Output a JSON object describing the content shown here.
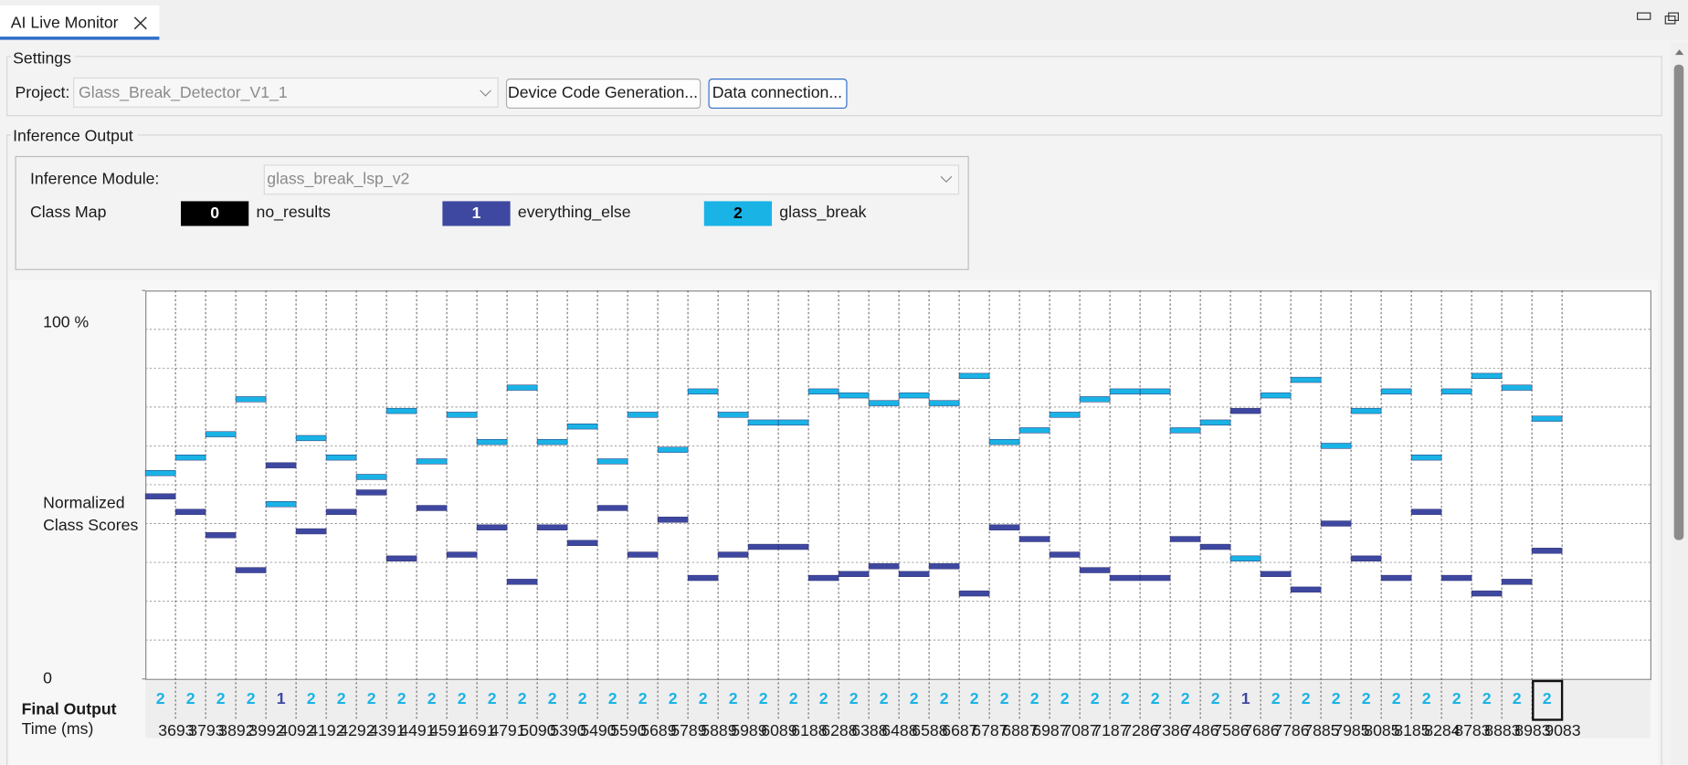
{
  "tab": {
    "title": "AI Live Monitor"
  },
  "settings": {
    "title": "Settings",
    "project_label": "Project:",
    "project": "Glass_Break_Detector_V1_1",
    "buttons": [
      "Device Code Generation...",
      "Data connection..."
    ]
  },
  "inference": {
    "title": "Inference Output",
    "module_label": "Inference Module:",
    "module": "glass_break_lsp_v2",
    "class_map_label": "Class Map"
  },
  "chart_data": {
    "type": "level",
    "classes": [
      {
        "id": 0,
        "name": "no_results",
        "color": "#000000"
      },
      {
        "id": 1,
        "name": "everything_else",
        "color": "#3f48a0"
      },
      {
        "id": 2,
        "name": "glass_break",
        "color": "#1ab3e6"
      }
    ],
    "ylabel": "Normalized Class Scores",
    "ylim": [
      0,
      100
    ],
    "yticks": [
      {
        "value": 0,
        "label": "0"
      },
      {
        "value": 100,
        "label": "100 %"
      }
    ],
    "ygrid": [
      10,
      20,
      30,
      40,
      50,
      60,
      70,
      80,
      90
    ],
    "categories": [
      "3693",
      "3793",
      "3892",
      "3992",
      "4092",
      "4192",
      "4292",
      "4391",
      "4491",
      "4591",
      "4691",
      "4791",
      "5090",
      "5390",
      "5490",
      "5590",
      "5689",
      "5789",
      "5889",
      "5989",
      "6089",
      "6188",
      "6288",
      "6388",
      "6488",
      "6588",
      "6687",
      "6787",
      "6887",
      "6987",
      "7087",
      "7187",
      "7286",
      "7386",
      "7486",
      "7586",
      "7686",
      "7786",
      "7885",
      "7985",
      "8085",
      "8185",
      "8284",
      "8783",
      "8883",
      "8983",
      "9083"
    ],
    "series": [
      {
        "class": 1,
        "values": [
          47,
          43,
          37,
          28,
          55,
          38,
          43,
          48,
          31,
          44,
          32,
          39,
          25,
          39,
          35,
          44,
          32,
          41,
          26,
          32,
          34,
          34,
          26,
          27,
          29,
          27,
          29,
          22,
          39,
          36,
          32,
          28,
          26,
          26,
          36,
          34,
          69,
          27,
          23,
          40,
          31,
          26,
          43,
          26,
          22,
          25,
          33
        ]
      },
      {
        "class": 2,
        "values": [
          53,
          57,
          63,
          72,
          45,
          62,
          57,
          52,
          69,
          56,
          68,
          61,
          75,
          61,
          65,
          56,
          68,
          59,
          74,
          68,
          66,
          66,
          74,
          73,
          71,
          73,
          71,
          78,
          61,
          64,
          68,
          72,
          74,
          74,
          64,
          66,
          31,
          73,
          77,
          60,
          69,
          74,
          57,
          74,
          78,
          75,
          67
        ]
      }
    ],
    "output_label": "Final Output",
    "final_output": [
      2,
      2,
      2,
      2,
      1,
      2,
      2,
      2,
      2,
      2,
      2,
      2,
      2,
      2,
      2,
      2,
      2,
      2,
      2,
      2,
      2,
      2,
      2,
      2,
      2,
      2,
      2,
      2,
      2,
      2,
      2,
      2,
      2,
      2,
      2,
      2,
      1,
      2,
      2,
      2,
      2,
      2,
      2,
      2,
      2,
      2,
      2
    ],
    "selected": 46,
    "xlabel": "Time (ms)"
  }
}
